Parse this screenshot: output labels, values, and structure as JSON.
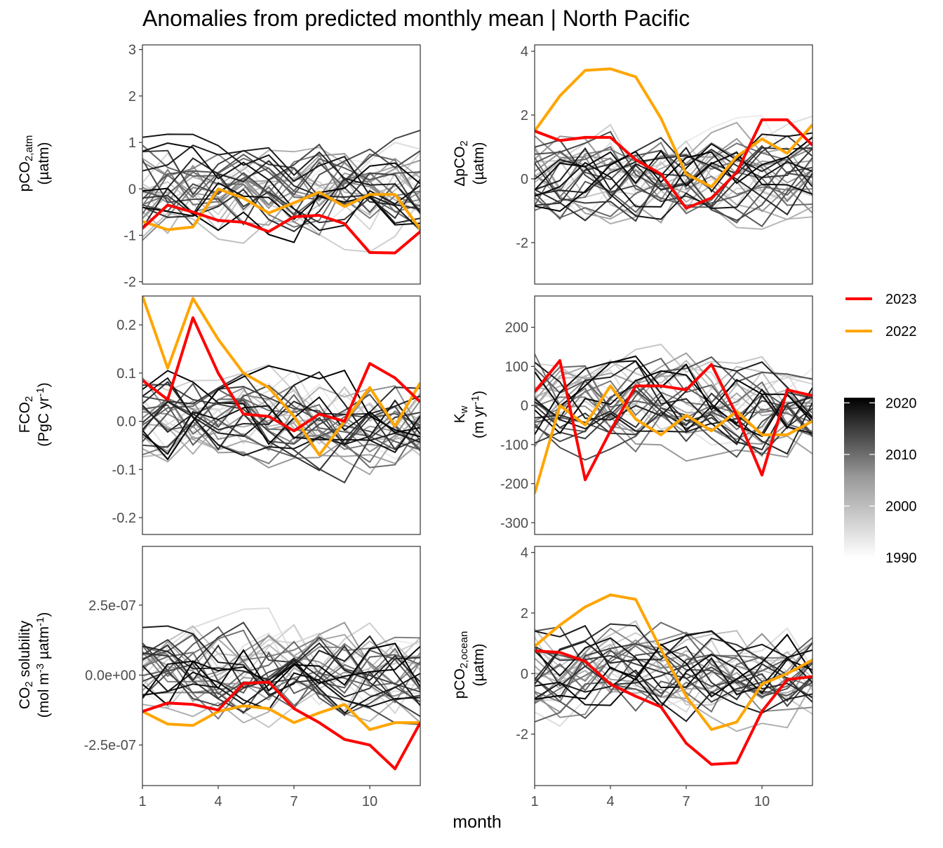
{
  "title": "Anomalies from predicted monthly mean | North Pacific",
  "xlabel": "month",
  "colors": {
    "y2023": "#ff0000",
    "y2022": "#ffa500",
    "axis": "#333333",
    "tick": "#4d4d4d"
  },
  "legend": {
    "highlight": [
      {
        "label": "2023",
        "color": "#ff0000"
      },
      {
        "label": "2022",
        "color": "#ffa500"
      }
    ],
    "colorbar": {
      "ticks": [
        "2020",
        "2010",
        "2000",
        "1990"
      ],
      "range": [
        1990,
        2021
      ]
    }
  },
  "chart_data": [
    {
      "type": "line",
      "id": "pco2atm",
      "ylabel": "pCO2,atm (µatm)",
      "x": [
        1,
        2,
        3,
        4,
        5,
        6,
        7,
        8,
        9,
        10,
        11,
        12
      ],
      "xticks": [
        "1",
        "4",
        "7",
        "10"
      ],
      "ylim": [
        -2.05,
        3.1
      ],
      "yticks": [
        "3",
        "2",
        "1",
        "0",
        "-1",
        "-2"
      ],
      "series": [
        {
          "name": "2023",
          "values": [
            -0.85,
            -0.35,
            -0.5,
            -0.68,
            -0.72,
            -0.92,
            -0.6,
            -0.57,
            -0.75,
            -1.37,
            -1.38,
            -0.92
          ]
        },
        {
          "name": "2022",
          "values": [
            -0.7,
            -0.88,
            -0.82,
            0.0,
            -0.2,
            -0.52,
            -0.3,
            -0.07,
            -0.38,
            -0.12,
            -0.12,
            -0.87
          ]
        }
      ]
    },
    {
      "type": "line",
      "id": "dpco2",
      "ylabel": "ΔpCO2 (µatm)",
      "x": [
        1,
        2,
        3,
        4,
        5,
        6,
        7,
        8,
        9,
        10,
        11,
        12
      ],
      "xticks": [
        "1",
        "4",
        "7",
        "10"
      ],
      "ylim": [
        -3.3,
        4.2
      ],
      "yticks": [
        "4",
        "2",
        "0",
        "-2"
      ],
      "series": [
        {
          "name": "2023",
          "values": [
            1.5,
            1.2,
            1.3,
            1.3,
            0.6,
            0.15,
            -0.92,
            -0.6,
            0.2,
            1.85,
            1.85,
            1.05
          ]
        },
        {
          "name": "2022",
          "values": [
            1.5,
            2.6,
            3.4,
            3.45,
            3.2,
            1.9,
            0.15,
            -0.25,
            0.7,
            1.25,
            0.8,
            1.7
          ]
        }
      ]
    },
    {
      "type": "line",
      "id": "fco2",
      "ylabel": "FCO2 (PgC yr-1)",
      "x": [
        1,
        2,
        3,
        4,
        5,
        6,
        7,
        8,
        9,
        10,
        11,
        12
      ],
      "xticks": [
        "1",
        "4",
        "7",
        "10"
      ],
      "ylim": [
        -0.235,
        0.26
      ],
      "yticks": [
        "0.2",
        "0.1",
        "0.0",
        "-0.1",
        "-0.2"
      ],
      "series": [
        {
          "name": "2023",
          "values": [
            0.085,
            0.045,
            0.215,
            0.1,
            0.015,
            0.01,
            -0.02,
            0.015,
            0.0,
            0.12,
            0.09,
            0.04
          ]
        },
        {
          "name": "2022",
          "values": [
            0.26,
            0.11,
            0.255,
            0.17,
            0.1,
            0.07,
            0.01,
            -0.07,
            0.0,
            0.07,
            -0.01,
            0.08
          ]
        }
      ]
    },
    {
      "type": "line",
      "id": "kw",
      "ylabel": "Kw (m yr-1)",
      "x": [
        1,
        2,
        3,
        4,
        5,
        6,
        7,
        8,
        9,
        10,
        11,
        12
      ],
      "xticks": [
        "1",
        "4",
        "7",
        "10"
      ],
      "ylim": [
        -330,
        280
      ],
      "yticks": [
        "200",
        "100",
        "0",
        "-100",
        "-200",
        "-300"
      ],
      "series": [
        {
          "name": "2023",
          "values": [
            35,
            115,
            -190,
            -65,
            50,
            50,
            40,
            105,
            -25,
            -178,
            40,
            25
          ]
        },
        {
          "name": "2022",
          "values": [
            -225,
            0,
            -50,
            50,
            -35,
            -75,
            -25,
            -65,
            -15,
            -75,
            -75,
            -40
          ]
        }
      ]
    },
    {
      "type": "line",
      "id": "solubility",
      "ylabel": "CO2 solubility (mol m-3 µatm-1)",
      "x": [
        1,
        2,
        3,
        4,
        5,
        6,
        7,
        8,
        9,
        10,
        11,
        12
      ],
      "xticks": [
        "1",
        "4",
        "7",
        "10"
      ],
      "ylim": [
        -3.95e-07,
        4.6e-07
      ],
      "yticks": [
        "2.5e-07",
        "0.0e+00",
        "-2.5e-07"
      ],
      "series": [
        {
          "name": "2023",
          "values": [
            -1.3e-07,
            -1e-07,
            -1.05e-07,
            -1.25e-07,
            -3e-08,
            -2.5e-08,
            -1.2e-07,
            -1.7e-07,
            -2.3e-07,
            -2.5e-07,
            -3.35e-07,
            -1.7e-07
          ]
        },
        {
          "name": "2022",
          "values": [
            -1.3e-07,
            -1.75e-07,
            -1.8e-07,
            -1.3e-07,
            -1.1e-07,
            -1.2e-07,
            -1.7e-07,
            -1.35e-07,
            -1.05e-07,
            -1.95e-07,
            -1.7e-07,
            -1.7e-07
          ]
        }
      ]
    },
    {
      "type": "line",
      "id": "pco2ocean",
      "ylabel": "pCO2,ocean (µatm)",
      "x": [
        1,
        2,
        3,
        4,
        5,
        6,
        7,
        8,
        9,
        10,
        11,
        12
      ],
      "xticks": [
        "1",
        "4",
        "7",
        "10"
      ],
      "ylim": [
        -3.7,
        4.2
      ],
      "yticks": [
        "4",
        "2",
        "0",
        "-2"
      ],
      "series": [
        {
          "name": "2023",
          "values": [
            0.75,
            0.7,
            0.4,
            -0.35,
            -0.75,
            -1.1,
            -2.3,
            -3.0,
            -2.95,
            -1.25,
            -0.2,
            -0.1
          ]
        },
        {
          "name": "2022",
          "values": [
            0.9,
            1.6,
            2.2,
            2.6,
            2.45,
            0.8,
            -0.75,
            -1.85,
            -1.6,
            -0.35,
            0.0,
            0.45
          ]
        }
      ]
    }
  ]
}
